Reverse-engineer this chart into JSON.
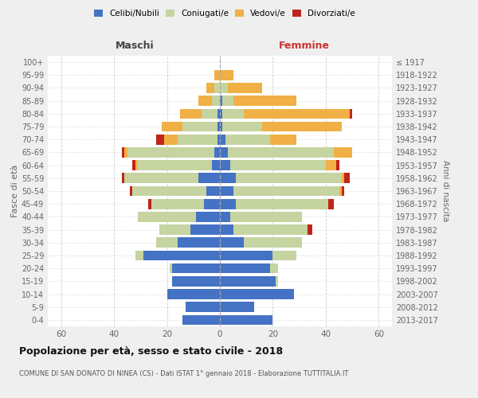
{
  "age_groups": [
    "0-4",
    "5-9",
    "10-14",
    "15-19",
    "20-24",
    "25-29",
    "30-34",
    "35-39",
    "40-44",
    "45-49",
    "50-54",
    "55-59",
    "60-64",
    "65-69",
    "70-74",
    "75-79",
    "80-84",
    "85-89",
    "90-94",
    "95-99",
    "100+"
  ],
  "birth_years": [
    "2013-2017",
    "2008-2012",
    "2003-2007",
    "1998-2002",
    "1993-1997",
    "1988-1992",
    "1983-1987",
    "1978-1982",
    "1973-1977",
    "1968-1972",
    "1963-1967",
    "1958-1962",
    "1953-1957",
    "1948-1952",
    "1943-1947",
    "1938-1942",
    "1933-1937",
    "1928-1932",
    "1923-1927",
    "1918-1922",
    "≤ 1917"
  ],
  "colors": {
    "celibi": "#4472C4",
    "coniugati": "#c5d4a0",
    "vedovi": "#f0b045",
    "divorziati": "#c0251a"
  },
  "males": {
    "celibi": [
      14,
      13,
      20,
      18,
      18,
      29,
      16,
      11,
      9,
      6,
      5,
      8,
      3,
      2,
      1,
      1,
      1,
      0,
      0,
      0,
      0
    ],
    "coniugati": [
      0,
      0,
      0,
      0,
      1,
      3,
      8,
      12,
      22,
      20,
      28,
      28,
      28,
      33,
      15,
      13,
      6,
      3,
      2,
      0,
      0
    ],
    "vedovi": [
      0,
      0,
      0,
      0,
      0,
      0,
      0,
      0,
      0,
      0,
      0,
      0,
      1,
      1,
      5,
      8,
      8,
      5,
      3,
      2,
      0
    ],
    "divorziati": [
      0,
      0,
      0,
      0,
      0,
      0,
      0,
      0,
      0,
      1,
      1,
      1,
      1,
      1,
      3,
      0,
      0,
      0,
      0,
      0,
      0
    ]
  },
  "females": {
    "nubili": [
      20,
      13,
      28,
      21,
      19,
      20,
      9,
      5,
      4,
      6,
      5,
      6,
      4,
      3,
      2,
      1,
      1,
      1,
      0,
      0,
      0
    ],
    "coniugate": [
      0,
      0,
      0,
      1,
      3,
      9,
      22,
      28,
      27,
      35,
      40,
      40,
      36,
      40,
      17,
      15,
      8,
      4,
      3,
      0,
      0
    ],
    "vedove": [
      0,
      0,
      0,
      0,
      0,
      0,
      0,
      0,
      0,
      0,
      1,
      1,
      4,
      7,
      10,
      30,
      40,
      24,
      13,
      5,
      0
    ],
    "divorziate": [
      0,
      0,
      0,
      0,
      0,
      0,
      0,
      2,
      0,
      2,
      1,
      2,
      1,
      0,
      0,
      0,
      1,
      0,
      0,
      0,
      0
    ]
  },
  "title": "Popolazione per età, sesso e stato civile - 2018",
  "subtitle": "COMUNE DI SAN DONATO DI NINEA (CS) - Dati ISTAT 1° gennaio 2018 - Elaborazione TUTTITALIA.IT",
  "xlabel_left": "Maschi",
  "xlabel_right": "Femmine",
  "ylabel": "Fasce di età",
  "ylabel_right": "Anni di nascita",
  "xlim": 65,
  "bg_color": "#efefef",
  "plot_bg": "#ffffff",
  "grid_color": "#cccccc"
}
